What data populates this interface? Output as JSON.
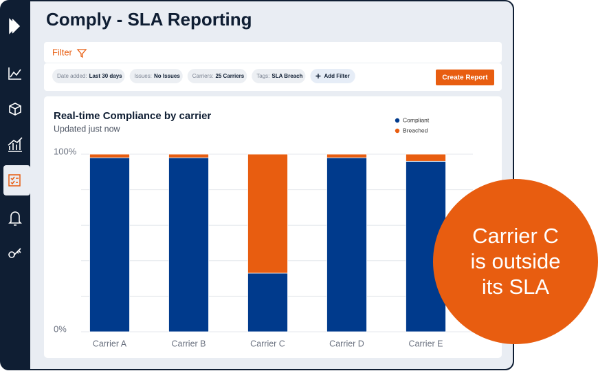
{
  "header": {
    "title": "Comply - SLA Reporting"
  },
  "filter": {
    "label": "Filter",
    "chips": [
      {
        "label": "Date added:",
        "value": "Last 30 days"
      },
      {
        "label": "Issues:",
        "value": "No Issues"
      },
      {
        "label": "Carriers:",
        "value": "25 Carriers"
      },
      {
        "label": "Tags:",
        "value": "SLA Breach"
      }
    ],
    "add_filter": "Add Filter",
    "create_report": "Create Report"
  },
  "callout": [
    "Carrier C",
    "is outside",
    "its SLA"
  ],
  "chart_data": {
    "type": "stacked-bar",
    "title": "Real-time Compliance by carrier",
    "subtitle": "Updated just now",
    "categories": [
      "Carrier A",
      "Carrier B",
      "Carrier C",
      "Carrier D",
      "Carrier E"
    ],
    "series": [
      {
        "name": "Compliant",
        "color": "#003a8c",
        "values": [
          98,
          98,
          33,
          98,
          96
        ]
      },
      {
        "name": "Breached",
        "color": "#e85d10",
        "values": [
          2,
          2,
          67,
          2,
          4
        ]
      }
    ],
    "ylim": [
      0,
      100
    ],
    "yticks": [
      {
        "value": 0,
        "label": "0%"
      },
      {
        "value": 100,
        "label": "100%"
      }
    ],
    "ygrid": [
      0,
      20,
      40,
      60,
      80,
      100
    ],
    "legend": "top-right"
  }
}
